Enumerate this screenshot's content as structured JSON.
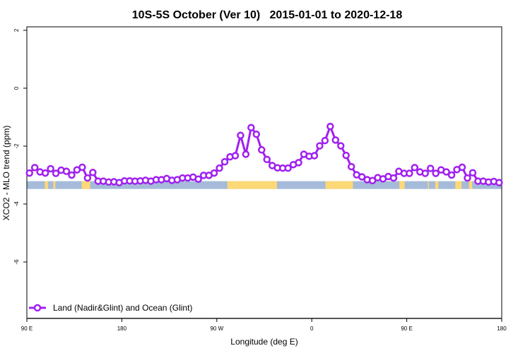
{
  "chart_data": {
    "type": "line",
    "title": "10S-5S October (Ver 10)   2015-01-01 to 2020-12-18",
    "xlabel": "Longitude (deg E)",
    "ylabel": "XCO2 - MLO trend (ppm)",
    "xlim": [
      90,
      540
    ],
    "ylim": [
      -7.95,
      2.12
    ],
    "x_ticks": [
      {
        "value": 90,
        "label": "90 E"
      },
      {
        "value": 180,
        "label": "180"
      },
      {
        "value": 270,
        "label": "90 W"
      },
      {
        "value": 360,
        "label": "0"
      },
      {
        "value": 450,
        "label": "90 E"
      },
      {
        "value": 540,
        "label": "180"
      }
    ],
    "y_ticks": [
      {
        "value": 2,
        "label": "2"
      },
      {
        "value": 0,
        "label": "0"
      },
      {
        "value": -2,
        "label": "-2"
      },
      {
        "value": -4,
        "label": "-4"
      },
      {
        "value": -6,
        "label": "-6"
      }
    ],
    "grid": false,
    "legend": {
      "placement": "bottom-left",
      "entries": [
        "Land (Nadir&Glint) and Ocean (Glint)"
      ]
    },
    "series": [
      {
        "name": "Land (Nadir&Glint) and Ocean (Glint)",
        "color": "#a020f0",
        "x_start": 92.5,
        "x_step": 5,
        "values": [
          -2.93,
          -2.74,
          -2.89,
          -2.93,
          -2.78,
          -2.94,
          -2.83,
          -2.87,
          -3.0,
          -2.82,
          -2.73,
          -3.1,
          -2.91,
          -3.21,
          -3.21,
          -3.24,
          -3.23,
          -3.26,
          -3.2,
          -3.2,
          -3.21,
          -3.2,
          -3.18,
          -3.21,
          -3.16,
          -3.16,
          -3.12,
          -3.18,
          -3.16,
          -3.1,
          -3.1,
          -3.07,
          -3.14,
          -3.01,
          -3.01,
          -2.93,
          -2.76,
          -2.54,
          -2.37,
          -2.33,
          -1.63,
          -2.28,
          -1.36,
          -1.59,
          -2.13,
          -2.46,
          -2.67,
          -2.75,
          -2.76,
          -2.76,
          -2.64,
          -2.57,
          -2.28,
          -2.35,
          -2.33,
          -1.99,
          -1.81,
          -1.32,
          -1.79,
          -1.99,
          -2.32,
          -2.71,
          -2.99,
          -3.06,
          -3.16,
          -3.19,
          -3.09,
          -3.13,
          -3.05,
          -3.1,
          -2.87,
          -2.94,
          -2.94,
          -2.74,
          -2.89,
          -2.94,
          -2.77,
          -2.94,
          -2.82,
          -2.89,
          -3.0,
          -2.81,
          -2.73,
          -3.1,
          -2.92,
          -3.21,
          -3.21,
          -3.24,
          -3.22,
          -3.26
        ]
      }
    ],
    "land_ocean_strip": {
      "y_range": [
        -3.21,
        -3.48
      ],
      "ocean_color": "#a5bbd9",
      "land_color": "#fdd877",
      "land_segments": [
        [
          107,
          110
        ],
        [
          115,
          117
        ],
        [
          142,
          150
        ],
        [
          147,
          148
        ],
        [
          280,
          327
        ],
        [
          373,
          399
        ],
        [
          443,
          448
        ],
        [
          470,
          471
        ],
        [
          477,
          480
        ],
        [
          496,
          502
        ],
        [
          509,
          512
        ]
      ]
    }
  }
}
